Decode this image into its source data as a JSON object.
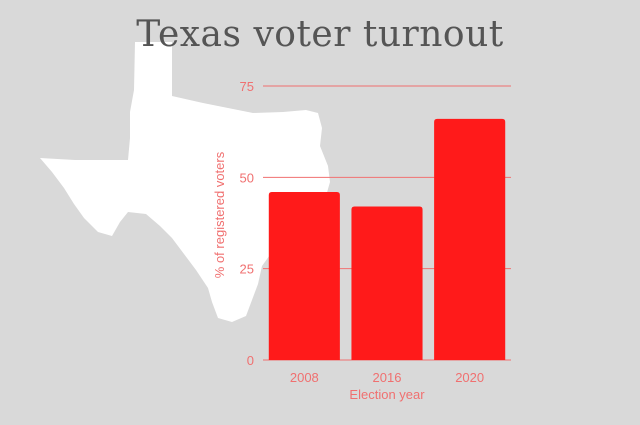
{
  "chart_data": {
    "type": "bar",
    "title": "Texas voter turnout",
    "xlabel": "Election year",
    "ylabel": "% of registered voters",
    "categories": [
      "2008",
      "2016",
      "2020"
    ],
    "values": [
      46,
      42,
      66
    ],
    "yticks": [
      0,
      25,
      50,
      75
    ],
    "ylim": [
      0,
      75
    ],
    "grid": true,
    "bar_color": "#ff1a1a",
    "axis_color": "#f07070",
    "background": "#d9d9d9",
    "illustration": "texas-state-silhouette"
  }
}
